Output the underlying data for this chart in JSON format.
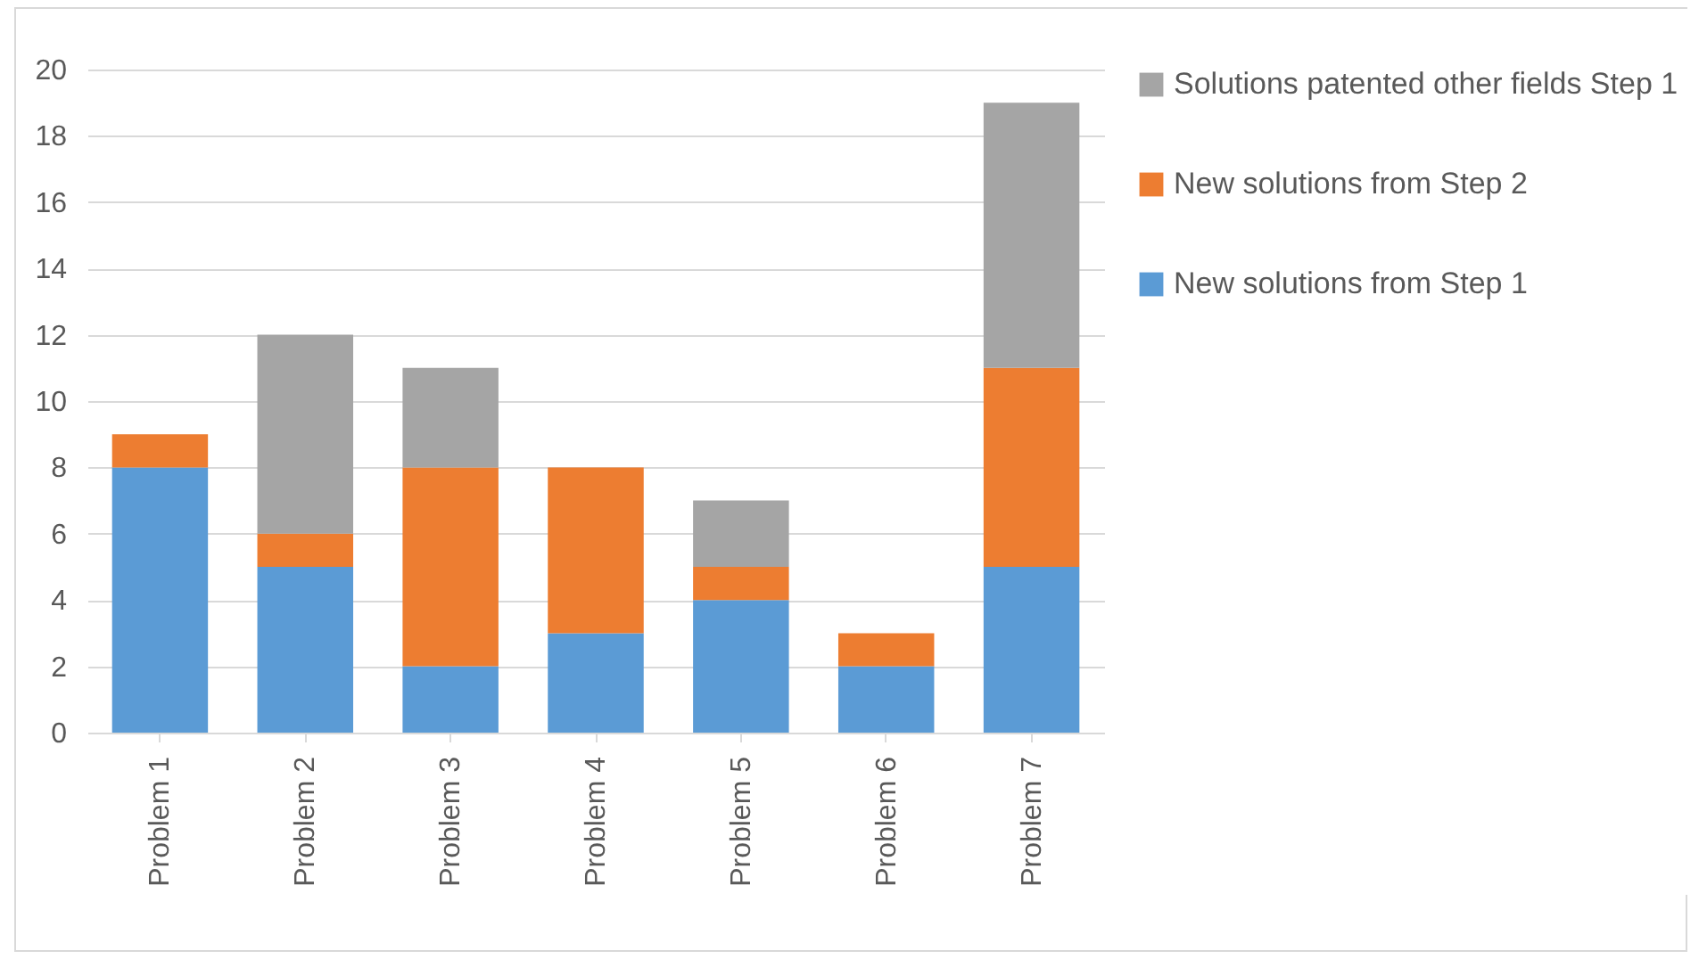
{
  "chart_data": {
    "type": "bar",
    "stacked": true,
    "categories": [
      "Problem 1",
      "Problem 2",
      "Problem 3",
      "Problem 4",
      "Problem 5",
      "Problem 6",
      "Problem 7"
    ],
    "series": [
      {
        "name": "New solutions from Step 1",
        "color": "#5b9bd5",
        "values": [
          8,
          5,
          2,
          3,
          4,
          2,
          5
        ]
      },
      {
        "name": "New solutions from Step 2",
        "color": "#ed7d31",
        "values": [
          1,
          1,
          6,
          5,
          1,
          1,
          6
        ]
      },
      {
        "name": "Solutions patented other fields Step 1",
        "color": "#a5a5a5",
        "values": [
          0,
          6,
          3,
          0,
          2,
          0,
          8
        ]
      }
    ],
    "ylim": [
      0,
      20
    ],
    "yticks": [
      0,
      2,
      4,
      6,
      8,
      10,
      12,
      14,
      16,
      18,
      20
    ],
    "grid": "y",
    "legend": "right"
  }
}
